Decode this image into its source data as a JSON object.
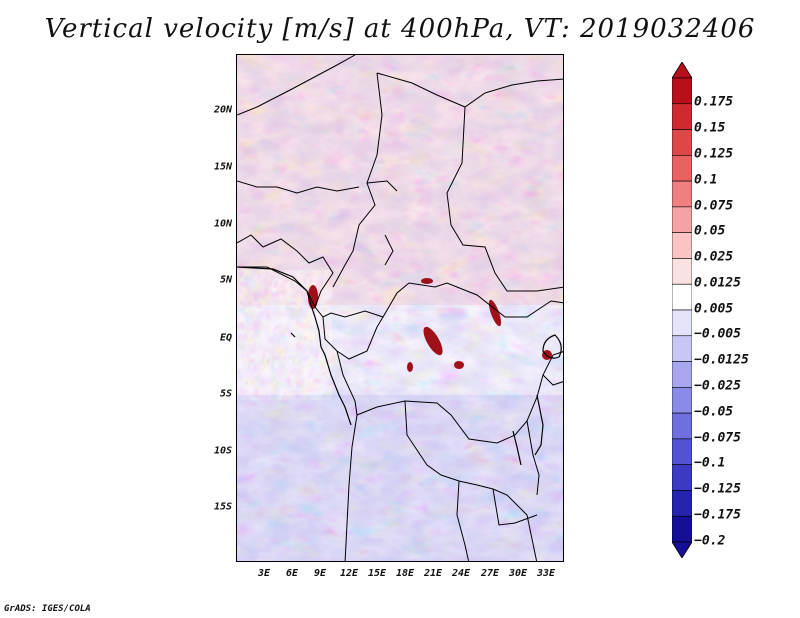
{
  "title": "Vertical velocity [m/s] at 400hPa, VT: 2019032406",
  "credit": "GrADS: IGES/COLA",
  "lat_labels": [
    "20N",
    "15N",
    "10N",
    "5N",
    "EQ",
    "5S",
    "10S",
    "15S"
  ],
  "lon_labels": [
    "3E",
    "6E",
    "9E",
    "12E",
    "15E",
    "18E",
    "21E",
    "24E",
    "27E",
    "30E",
    "33E"
  ],
  "colorbar": {
    "labels": [
      "0.175",
      "0.15",
      "0.125",
      "0.1",
      "0.075",
      "0.05",
      "0.025",
      "0.0125",
      "0.005",
      "−0.005",
      "−0.0125",
      "−0.025",
      "−0.05",
      "−0.075",
      "−0.1",
      "−0.125",
      "−0.175",
      "−0.2"
    ],
    "colors": [
      "#b8101a",
      "#cf2a2f",
      "#de4747",
      "#e86262",
      "#f08080",
      "#f5a2a2",
      "#f9c4c4",
      "#fce1e1",
      "#ffffff",
      "#e3e3fb",
      "#c7c7f6",
      "#a7a7ef",
      "#8a8ae8",
      "#6f6fe0",
      "#5252d4",
      "#3a3ac4",
      "#2424b0",
      "#140f96"
    ]
  },
  "colors": {
    "positive": "#e06a6a",
    "negative": "#7070e0",
    "border": "#000000",
    "background": "#ffffff"
  }
}
